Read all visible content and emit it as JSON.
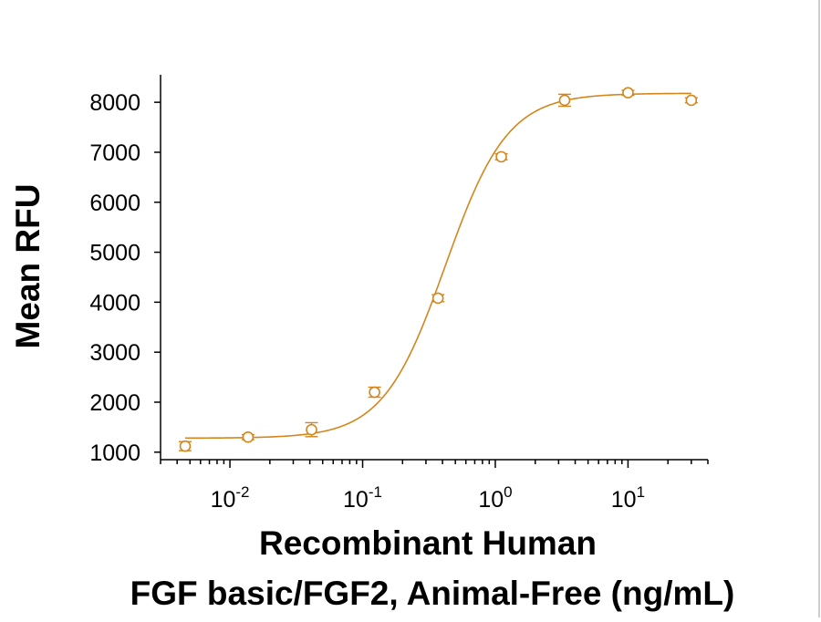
{
  "chart_data": {
    "type": "scatter",
    "xlabel_lines": [
      "Recombinant Human",
      "FGF basic/FGF2, Animal-Free (ng/mL)"
    ],
    "ylabel": "Mean RFU",
    "x_scale": "log",
    "xlim": [
      0.003,
      40
    ],
    "ylim": [
      850,
      8550
    ],
    "y_ticks": [
      1000,
      2000,
      3000,
      4000,
      5000,
      6000,
      7000,
      8000
    ],
    "y_tick_labels": [
      "1000",
      "2000",
      "3000",
      "4000",
      "5000",
      "6000",
      "7000",
      "8000"
    ],
    "x_ticks": [
      {
        "value": 0.01,
        "base": "10",
        "exp": "-2"
      },
      {
        "value": 0.1,
        "base": "10",
        "exp": "-1"
      },
      {
        "value": 1,
        "base": "10",
        "exp": "0"
      },
      {
        "value": 10,
        "base": "10",
        "exp": "1"
      }
    ],
    "grid": false,
    "color": "#D4861C",
    "points": [
      {
        "x": 0.0046,
        "y": 1120,
        "err": 90
      },
      {
        "x": 0.0137,
        "y": 1300,
        "err": 50
      },
      {
        "x": 0.0412,
        "y": 1450,
        "err": 140
      },
      {
        "x": 0.123,
        "y": 2200,
        "err": 100
      },
      {
        "x": 0.37,
        "y": 4080,
        "err": 70
      },
      {
        "x": 1.11,
        "y": 6910,
        "err": 60
      },
      {
        "x": 3.33,
        "y": 8040,
        "err": 120
      },
      {
        "x": 10,
        "y": 8190,
        "err": 50
      },
      {
        "x": 30,
        "y": 8040,
        "err": 50
      }
    ],
    "fit": {
      "bottom": 1280,
      "top": 8180,
      "ec50": 0.42,
      "hill": 1.85
    }
  }
}
